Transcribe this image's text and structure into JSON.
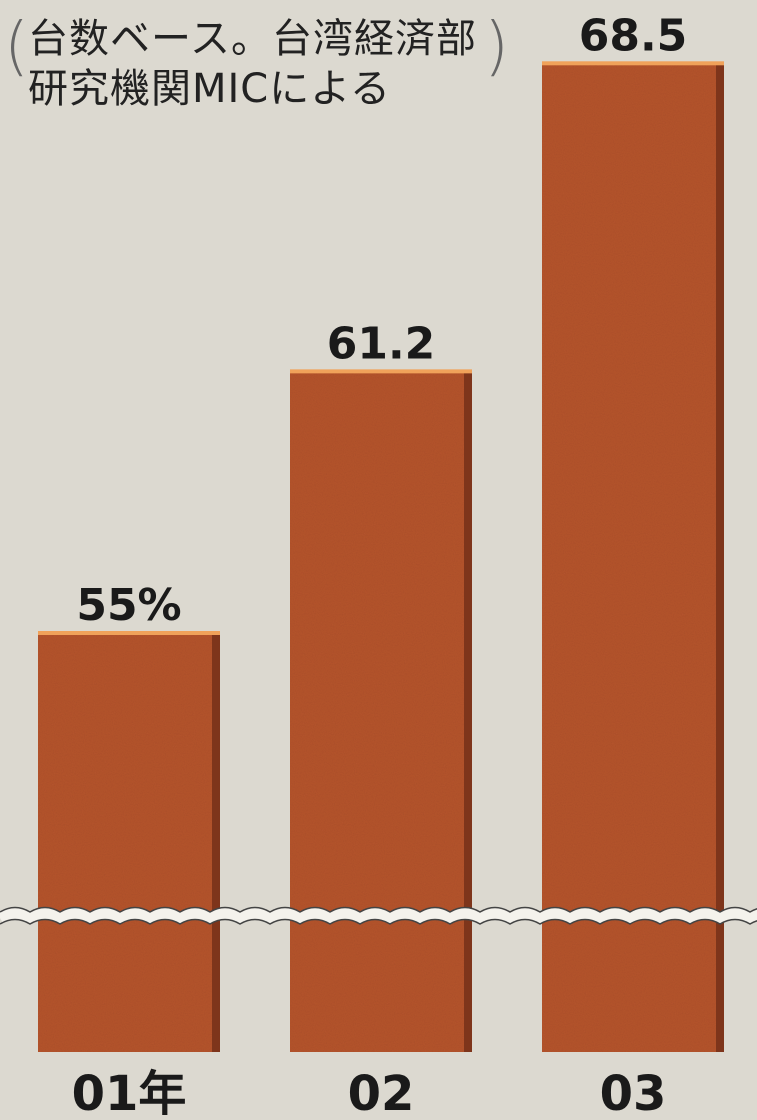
{
  "source_note": {
    "line1": "台数ベース。台湾経済部",
    "line2": "研究機関MICによる"
  },
  "colors": {
    "bar": "#b5542d",
    "bar_side": "#7e351b",
    "bar_top": "#f0a25a",
    "background": "#dcd9d0",
    "break_line": "#f4f2ec"
  },
  "chart_data": {
    "type": "bar",
    "categories": [
      "01年",
      "02",
      "03"
    ],
    "values": [
      55,
      61.2,
      68.5
    ],
    "value_labels": [
      "55%",
      "61.2",
      "68.5"
    ],
    "unit": "%",
    "axis_break": true,
    "grid": false,
    "title": "",
    "xlabel": "",
    "ylabel": ""
  }
}
